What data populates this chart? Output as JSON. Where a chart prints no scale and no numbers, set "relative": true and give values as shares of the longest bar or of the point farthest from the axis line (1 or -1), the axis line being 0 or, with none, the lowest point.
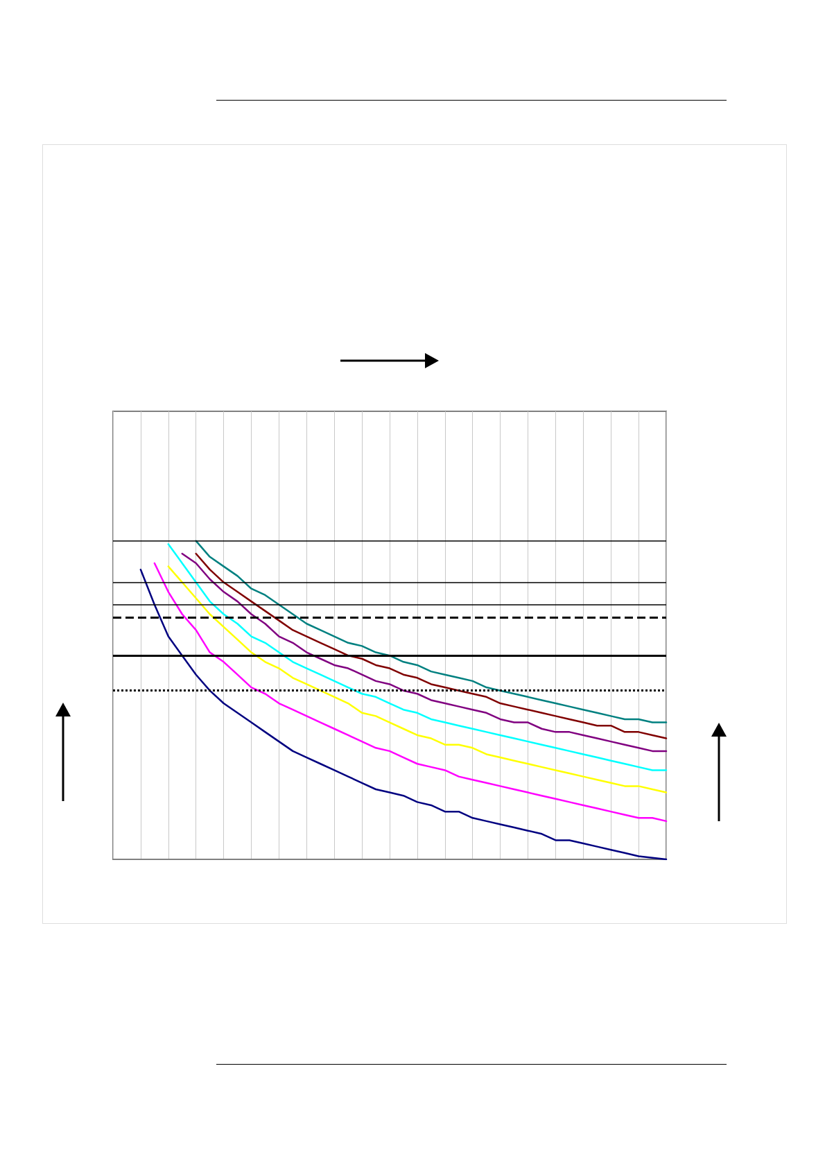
{
  "chart_data": {
    "type": "line",
    "relative": true,
    "grid": "x",
    "marker": "none",
    "line_style": "solid",
    "categories": [
      null,
      null,
      null,
      null,
      null,
      null,
      null,
      null,
      null,
      null,
      null,
      null,
      null,
      null,
      null,
      null,
      null,
      null,
      null,
      null,
      null,
      null,
      null,
      null,
      null,
      null,
      null,
      null,
      null,
      null,
      null,
      null,
      null,
      null,
      null,
      null,
      null,
      null,
      null,
      null,
      null
    ],
    "series": [
      {
        "color": "#000080",
        "values": [
          null,
          null,
          0.91,
          0.8,
          0.7,
          0.64,
          0.58,
          0.53,
          0.49,
          0.46,
          0.43,
          0.4,
          0.37,
          0.34,
          0.32,
          0.3,
          0.28,
          0.26,
          0.24,
          0.22,
          0.21,
          0.2,
          0.18,
          0.17,
          0.15,
          0.15,
          0.13,
          0.12,
          0.11,
          0.1,
          0.09,
          0.08,
          0.06,
          0.06,
          0.05,
          0.04,
          0.03,
          0.02,
          0.01,
          0.005,
          0
        ]
      },
      {
        "color": "#ff00ff",
        "values": [
          null,
          null,
          null,
          0.93,
          0.84,
          0.77,
          0.72,
          0.65,
          0.62,
          0.58,
          0.54,
          0.52,
          0.49,
          0.47,
          0.45,
          0.43,
          0.41,
          0.39,
          0.37,
          0.35,
          0.34,
          0.32,
          0.3,
          0.29,
          0.28,
          0.26,
          0.25,
          0.24,
          0.23,
          0.22,
          0.21,
          0.2,
          0.19,
          0.18,
          0.17,
          0.16,
          0.15,
          0.14,
          0.13,
          0.13,
          0.12
        ]
      },
      {
        "color": "#ffff00",
        "values": [
          null,
          null,
          null,
          null,
          0.92,
          0.87,
          0.82,
          0.77,
          0.73,
          0.69,
          0.65,
          0.62,
          0.6,
          0.57,
          0.55,
          0.53,
          0.51,
          0.49,
          0.46,
          0.45,
          0.43,
          0.41,
          0.39,
          0.38,
          0.36,
          0.36,
          0.35,
          0.33,
          0.32,
          0.31,
          0.3,
          0.29,
          0.28,
          0.27,
          0.26,
          0.25,
          0.24,
          0.23,
          0.23,
          0.22,
          0.21
        ]
      },
      {
        "color": "#00ffff",
        "values": [
          null,
          null,
          null,
          null,
          0.99,
          0.93,
          0.87,
          0.81,
          0.77,
          0.74,
          0.7,
          0.68,
          0.65,
          0.62,
          0.6,
          0.58,
          0.56,
          0.54,
          0.52,
          0.51,
          0.49,
          0.47,
          0.46,
          0.44,
          0.43,
          0.42,
          0.41,
          0.4,
          0.39,
          0.38,
          0.37,
          0.36,
          0.35,
          0.34,
          0.33,
          0.32,
          0.31,
          0.3,
          0.29,
          0.28,
          0.28
        ]
      },
      {
        "color": "#800080",
        "values": [
          null,
          null,
          null,
          null,
          null,
          0.96,
          0.93,
          0.88,
          0.84,
          0.81,
          0.77,
          0.74,
          0.7,
          0.68,
          0.65,
          0.63,
          0.61,
          0.6,
          0.58,
          0.56,
          0.55,
          0.53,
          0.52,
          0.5,
          0.49,
          0.48,
          0.47,
          0.46,
          0.44,
          0.43,
          0.43,
          0.41,
          0.4,
          0.4,
          0.39,
          0.38,
          0.37,
          0.36,
          0.35,
          0.34,
          0.34
        ]
      },
      {
        "color": "#800000",
        "values": [
          null,
          null,
          null,
          null,
          null,
          null,
          0.96,
          0.91,
          0.87,
          0.84,
          0.81,
          0.78,
          0.75,
          0.72,
          0.7,
          0.68,
          0.66,
          0.64,
          0.63,
          0.61,
          0.6,
          0.58,
          0.57,
          0.55,
          0.54,
          0.53,
          0.52,
          0.51,
          0.49,
          0.48,
          0.47,
          0.46,
          0.45,
          0.44,
          0.43,
          0.42,
          0.42,
          0.4,
          0.4,
          0.39,
          0.38
        ]
      },
      {
        "color": "#008080",
        "values": [
          null,
          null,
          null,
          null,
          null,
          null,
          1,
          0.95,
          0.92,
          0.89,
          0.85,
          0.83,
          0.8,
          0.77,
          0.74,
          0.72,
          0.7,
          0.68,
          0.67,
          0.65,
          0.64,
          0.62,
          0.61,
          0.59,
          0.58,
          0.57,
          0.56,
          0.54,
          0.53,
          0.52,
          0.51,
          0.5,
          0.49,
          0.48,
          0.47,
          0.46,
          0.45,
          0.44,
          0.44,
          0.43,
          0.43
        ]
      }
    ],
    "ref_lines": [
      {
        "axis": "y",
        "value": 1,
        "color": "#000000",
        "line_style": "solid"
      },
      {
        "axis": "y",
        "value": 0.87,
        "color": "#000000",
        "line_style": "solid"
      },
      {
        "axis": "y",
        "value": 0.8,
        "color": "#000000",
        "line_style": "solid"
      },
      {
        "axis": "y",
        "value": 0.76,
        "color": "#000000",
        "line_style": "dashed"
      },
      {
        "axis": "y",
        "value": 0.64,
        "color": "#000000",
        "line_style": "solid"
      },
      {
        "axis": "y",
        "value": 0.53,
        "color": "#000000",
        "line_style": "dotted"
      }
    ]
  }
}
